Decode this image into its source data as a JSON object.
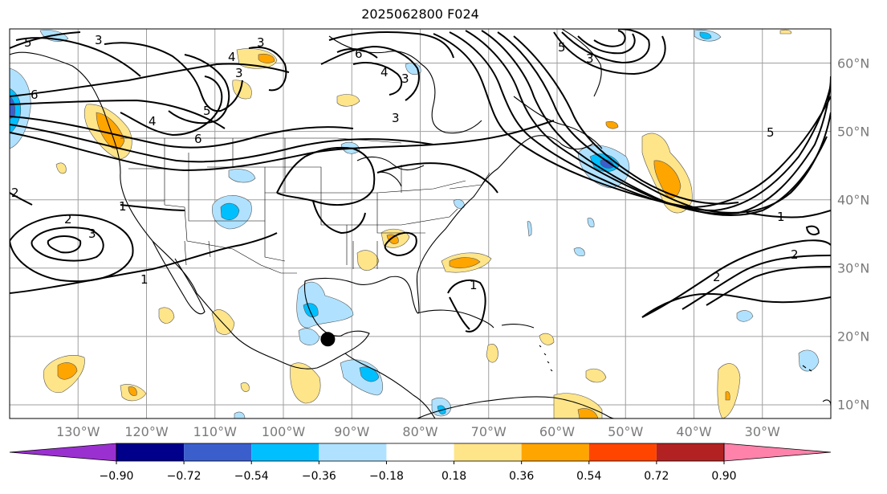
{
  "title": "2025062800 F024",
  "axes": {
    "lon_labels": [
      {
        "text": "130°W",
        "lon": -130
      },
      {
        "text": "120°W",
        "lon": -120
      },
      {
        "text": "110°W",
        "lon": -110
      },
      {
        "text": "100°W",
        "lon": -100
      },
      {
        "text": "90°W",
        "lon": -90
      },
      {
        "text": "80°W",
        "lon": -80
      },
      {
        "text": "70°W",
        "lon": -70
      },
      {
        "text": "60°W",
        "lon": -60
      },
      {
        "text": "50°W",
        "lon": -50
      },
      {
        "text": "40°W",
        "lon": -40
      },
      {
        "text": "30°W",
        "lon": -30
      }
    ],
    "lat_labels": [
      {
        "text": "60°N",
        "lat": 60
      },
      {
        "text": "50°N",
        "lat": 50
      },
      {
        "text": "40°N",
        "lat": 40
      },
      {
        "text": "30°N",
        "lat": 30
      },
      {
        "text": "20°N",
        "lat": 20
      },
      {
        "text": "10°N",
        "lat": 10
      }
    ],
    "lon_range": [
      -140,
      -20
    ],
    "lat_range": [
      8,
      65
    ]
  },
  "colorbar": {
    "labels": [
      "−0.90",
      "−0.72",
      "−0.54",
      "−0.36",
      "−0.18",
      "0.18",
      "0.36",
      "0.54",
      "0.72",
      "0.90"
    ],
    "colors": [
      "#9b30d0",
      "#00008b",
      "#3a5fcd",
      "#00bfff",
      "#b0e2ff",
      "#ffffff",
      "#ffe58a",
      "#ffa500",
      "#ff4500",
      "#b22222",
      "#ff82ab"
    ]
  },
  "contour_labels": [
    "5",
    "3",
    "3",
    "4",
    "3",
    "6",
    "4",
    "3",
    "5",
    "3",
    "6",
    "5",
    "4",
    "6",
    "5",
    "1",
    "2",
    "3",
    "1",
    "1",
    "2",
    "2",
    "1",
    "2",
    "3"
  ],
  "marker": {
    "name": "storm-center",
    "lon": -93.5,
    "lat": 19.6
  }
}
